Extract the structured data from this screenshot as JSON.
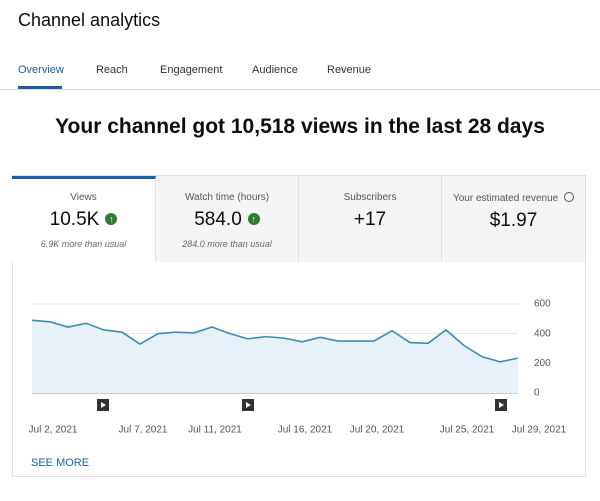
{
  "header": {
    "title": "Channel analytics"
  },
  "tabs": [
    "Overview",
    "Reach",
    "Engagement",
    "Audience",
    "Revenue"
  ],
  "headline": "Your channel got 10,518 views in the last 28 days",
  "cards": [
    {
      "label": "Views",
      "value": "10.5K",
      "note": "6.9K more than usual"
    },
    {
      "label": "Watch time (hours)",
      "value": "584.0",
      "note": "284.0 more than usual"
    },
    {
      "label": "Subscribers",
      "value": "+17"
    },
    {
      "label": "Your estimated revenue",
      "value": "$1.97"
    }
  ],
  "chart_data": {
    "type": "area",
    "categories": [
      "Jul 2, 2021",
      null,
      null,
      null,
      null,
      "Jul 7, 2021",
      null,
      null,
      null,
      "Jul 11, 2021",
      null,
      null,
      null,
      null,
      "Jul 16, 2021",
      null,
      null,
      null,
      "Jul 20, 2021",
      null,
      null,
      null,
      null,
      "Jul 25, 2021",
      null,
      null,
      null,
      "Jul 29, 2021"
    ],
    "values": [
      490,
      480,
      445,
      470,
      425,
      410,
      330,
      400,
      410,
      405,
      445,
      400,
      365,
      380,
      370,
      345,
      375,
      350,
      350,
      350,
      420,
      340,
      335,
      425,
      320,
      245,
      210,
      235
    ],
    "color": "#3a8db5",
    "ylim": [
      0,
      600
    ],
    "yticks": [
      0,
      200,
      400,
      600
    ],
    "grid": true
  },
  "see_more": "SEE MORE"
}
